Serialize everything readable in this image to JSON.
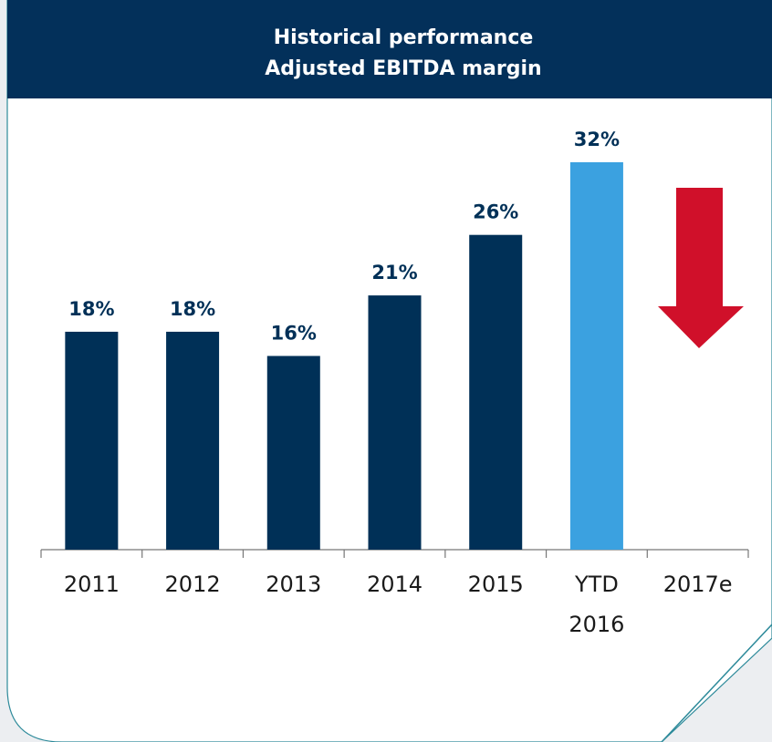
{
  "chart_data": {
    "type": "bar",
    "title": "Historical performance",
    "subtitle": "Adjusted EBITDA margin",
    "categories": [
      "2011",
      "2012",
      "2013",
      "2014",
      "2015",
      "YTD\n2016",
      "2017e"
    ],
    "values": [
      18,
      18,
      16,
      21,
      26,
      32,
      null
    ],
    "value_labels": [
      "18%",
      "18%",
      "16%",
      "21%",
      "26%",
      "32%",
      null
    ],
    "colors": [
      "#003057",
      "#003057",
      "#003057",
      "#003057",
      "#003057",
      "#3ba1e0",
      "#003057"
    ],
    "ylim": [
      0,
      32
    ]
  }
}
